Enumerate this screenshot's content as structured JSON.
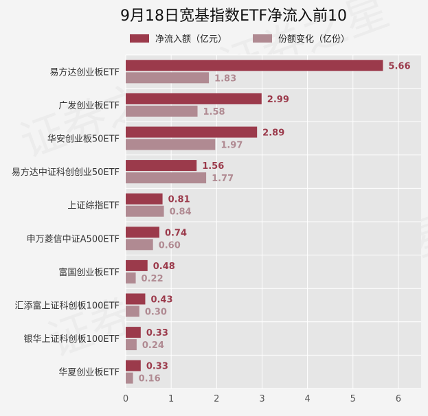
{
  "chart_data": {
    "type": "bar",
    "orientation": "horizontal",
    "title": "9月18日宽基指数ETF净流入前10",
    "categories": [
      "易方达创业板ETF",
      "广发创业板ETF",
      "华安创业板50ETF",
      "易方达中证科创创业50ETF",
      "上证综指ETF",
      "申万菱信中证A500ETF",
      "富国创业板ETF",
      "汇添富上证科创板100ETF",
      "银华上证科创板100ETF",
      "华夏创业板ETF"
    ],
    "series": [
      {
        "name": "净流入额（亿元）",
        "color": "#9b3a4b",
        "values": [
          5.66,
          2.99,
          2.89,
          1.56,
          0.81,
          0.74,
          0.48,
          0.43,
          0.33,
          0.33
        ]
      },
      {
        "name": "份额变化（亿份）",
        "color": "#b08a92",
        "values": [
          1.83,
          1.58,
          1.97,
          1.77,
          0.84,
          0.6,
          0.22,
          0.3,
          0.24,
          0.16
        ]
      }
    ],
    "value_labels": [
      [
        "5.66",
        "2.99",
        "2.89",
        "1.56",
        "0.81",
        "0.74",
        "0.48",
        "0.43",
        "0.33",
        "0.33"
      ],
      [
        "1.83",
        "1.58",
        "1.97",
        "1.77",
        "0.84",
        "0.60",
        "0.22",
        "0.30",
        "0.24",
        "0.16"
      ]
    ],
    "xlim": [
      0,
      6.5
    ],
    "xticks": [
      "0",
      "1",
      "2",
      "3",
      "4",
      "5",
      "6"
    ],
    "grid": true,
    "legend_position": "top",
    "background": "#e6e6e6"
  },
  "watermark": "证券之星"
}
